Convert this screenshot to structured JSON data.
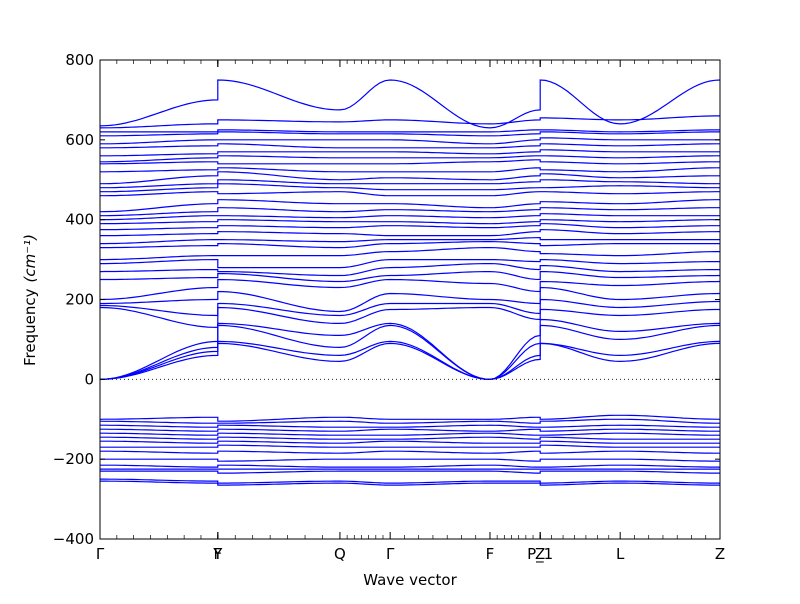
{
  "chart_data": {
    "type": "line",
    "title": "",
    "xlabel": "Wave vector",
    "ylabel": "Frequency",
    "ylabel_unit": "(cm⁻¹)",
    "ylim": [
      -400,
      800
    ],
    "yticks": [
      -400,
      -200,
      0,
      200,
      400,
      600,
      800
    ],
    "grid": false,
    "legend": "none",
    "line_color": "#0000ff",
    "zero_line": {
      "y": 0,
      "style": "dotted",
      "color": "#000000"
    },
    "xlim": [
      0,
      1
    ],
    "high_symmetry_points": [
      {
        "label": "Γ",
        "x": 0.0
      },
      {
        "label": "Y",
        "x": 0.19
      },
      {
        "label": "F",
        "x": 0.19
      },
      {
        "label": "Q",
        "x": 0.387
      },
      {
        "label": "Γ",
        "x": 0.468
      },
      {
        "label": "F",
        "x": 0.629
      },
      {
        "label": "P_1",
        "x": 0.71
      },
      {
        "label": "Z",
        "x": 0.71
      },
      {
        "label": "L",
        "x": 0.839
      },
      {
        "label": "Z",
        "x": 1.0
      }
    ],
    "minor_ticks_per_segment": 6,
    "series": [
      {
        "values": [
          0,
          60,
          90,
          45,
          90,
          0,
          60,
          90,
          45,
          90
        ]
      },
      {
        "values": [
          0,
          70,
          95,
          60,
          95,
          0,
          50,
          90,
          60,
          95
        ]
      },
      {
        "values": [
          0,
          80,
          135,
          80,
          135,
          0,
          90,
          135,
          100,
          135
        ]
      },
      {
        "values": [
          0,
          95,
          140,
          110,
          140,
          0,
          110,
          150,
          120,
          140
        ]
      },
      {
        "values": [
          180,
          130,
          180,
          140,
          175,
          180,
          150,
          175,
          160,
          175
        ]
      },
      {
        "values": [
          185,
          160,
          190,
          160,
          190,
          190,
          165,
          200,
          180,
          195
        ]
      },
      {
        "values": [
          190,
          200,
          220,
          170,
          215,
          200,
          190,
          230,
          200,
          215
        ]
      },
      {
        "values": [
          200,
          230,
          250,
          230,
          250,
          240,
          220,
          245,
          235,
          245
        ]
      },
      {
        "values": [
          250,
          255,
          265,
          245,
          260,
          270,
          250,
          270,
          255,
          260
        ]
      },
      {
        "values": [
          270,
          275,
          270,
          260,
          280,
          290,
          275,
          285,
          270,
          275
        ]
      },
      {
        "values": [
          290,
          300,
          280,
          280,
          300,
          300,
          295,
          300,
          290,
          295
        ]
      },
      {
        "values": [
          300,
          310,
          310,
          310,
          320,
          330,
          320,
          315,
          310,
          320
        ]
      },
      {
        "values": [
          330,
          335,
          340,
          330,
          340,
          345,
          340,
          335,
          340,
          340
        ]
      },
      {
        "values": [
          340,
          350,
          350,
          345,
          350,
          350,
          355,
          350,
          350,
          350
        ]
      },
      {
        "values": [
          360,
          365,
          370,
          365,
          360,
          360,
          370,
          375,
          365,
          370
        ]
      },
      {
        "values": [
          375,
          380,
          385,
          380,
          385,
          380,
          385,
          390,
          380,
          385
        ]
      },
      {
        "values": [
          390,
          395,
          400,
          395,
          395,
          390,
          395,
          400,
          395,
          400
        ]
      },
      {
        "values": [
          400,
          410,
          410,
          405,
          410,
          405,
          410,
          415,
          410,
          410
        ]
      },
      {
        "values": [
          410,
          420,
          430,
          420,
          425,
          420,
          425,
          430,
          425,
          430
        ]
      },
      {
        "values": [
          420,
          440,
          450,
          440,
          440,
          430,
          440,
          445,
          440,
          450
        ]
      },
      {
        "values": [
          460,
          470,
          465,
          470,
          460,
          460,
          470,
          470,
          465,
          470
        ]
      },
      {
        "values": [
          470,
          480,
          490,
          480,
          475,
          475,
          480,
          480,
          485,
          480
        ]
      },
      {
        "values": [
          480,
          490,
          500,
          490,
          490,
          490,
          495,
          500,
          495,
          490
        ]
      },
      {
        "values": [
          490,
          510,
          520,
          500,
          505,
          500,
          510,
          515,
          505,
          510
        ]
      },
      {
        "values": [
          520,
          525,
          530,
          520,
          520,
          520,
          530,
          525,
          520,
          530
        ]
      },
      {
        "values": [
          540,
          545,
          540,
          540,
          540,
          545,
          550,
          545,
          540,
          545
        ]
      },
      {
        "values": [
          545,
          555,
          560,
          555,
          555,
          555,
          560,
          560,
          555,
          560
        ]
      },
      {
        "values": [
          560,
          565,
          570,
          570,
          570,
          565,
          570,
          575,
          570,
          570
        ]
      },
      {
        "values": [
          580,
          585,
          590,
          580,
          580,
          580,
          585,
          590,
          585,
          590
        ]
      },
      {
        "values": [
          590,
          600,
          600,
          600,
          600,
          590,
          600,
          605,
          600,
          600
        ]
      },
      {
        "values": [
          610,
          615,
          620,
          615,
          615,
          610,
          615,
          620,
          615,
          620
        ]
      },
      {
        "values": [
          620,
          620,
          625,
          620,
          620,
          620,
          625,
          625,
          620,
          625
        ]
      },
      {
        "values": [
          630,
          640,
          650,
          645,
          650,
          640,
          650,
          655,
          650,
          660
        ]
      },
      {
        "values": [
          635,
          700,
          750,
          675,
          750,
          630,
          675,
          750,
          640,
          750
        ]
      },
      {
        "values": [
          -100,
          -95,
          -105,
          -95,
          -100,
          -100,
          -95,
          -100,
          -90,
          -100
        ]
      },
      {
        "values": [
          -105,
          -110,
          -110,
          -105,
          -110,
          -105,
          -110,
          -105,
          -100,
          -110
        ]
      },
      {
        "values": [
          -115,
          -120,
          -115,
          -120,
          -120,
          -115,
          -120,
          -120,
          -115,
          -120
        ]
      },
      {
        "values": [
          -125,
          -130,
          -125,
          -130,
          -125,
          -130,
          -125,
          -130,
          -125,
          -130
        ]
      },
      {
        "values": [
          -135,
          -140,
          -135,
          -140,
          -140,
          -135,
          -140,
          -140,
          -135,
          -140
        ]
      },
      {
        "values": [
          -145,
          -150,
          -145,
          -150,
          -150,
          -145,
          -150,
          -145,
          -150,
          -150
        ]
      },
      {
        "values": [
          -155,
          -160,
          -155,
          -160,
          -155,
          -160,
          -160,
          -155,
          -160,
          -160
        ]
      },
      {
        "values": [
          -170,
          -170,
          -165,
          -170,
          -170,
          -170,
          -170,
          -165,
          -170,
          -170
        ]
      },
      {
        "values": [
          -180,
          -185,
          -180,
          -185,
          -180,
          -185,
          -180,
          -185,
          -180,
          -185
        ]
      },
      {
        "values": [
          -200,
          -200,
          -205,
          -200,
          -200,
          -200,
          -205,
          -200,
          -200,
          -205
        ]
      },
      {
        "values": [
          -215,
          -220,
          -215,
          -220,
          -220,
          -215,
          -220,
          -220,
          -215,
          -220
        ]
      },
      {
        "values": [
          -225,
          -225,
          -225,
          -225,
          -225,
          -225,
          -225,
          -225,
          -225,
          -225
        ]
      },
      {
        "values": [
          -230,
          -230,
          -235,
          -230,
          -230,
          -230,
          -235,
          -230,
          -230,
          -235
        ]
      },
      {
        "values": [
          -250,
          -255,
          -260,
          -255,
          -260,
          -255,
          -255,
          -260,
          -255,
          -260
        ]
      },
      {
        "values": [
          -255,
          -260,
          -265,
          -260,
          -265,
          -260,
          -260,
          -265,
          -260,
          -265
        ]
      }
    ]
  }
}
